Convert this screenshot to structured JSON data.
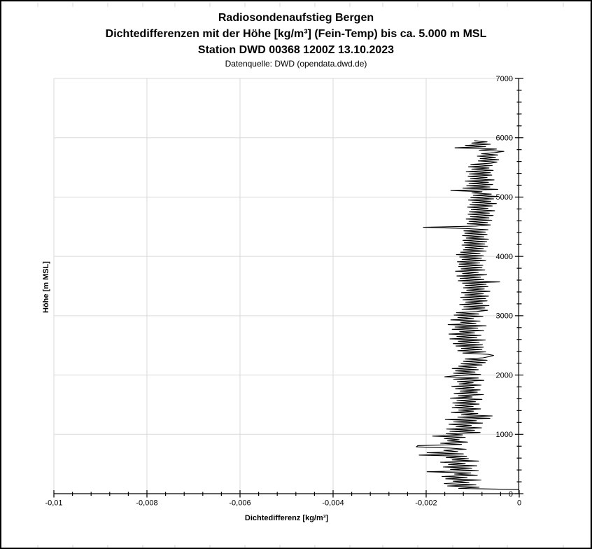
{
  "header": {
    "title": "Radiosondenaufstieg Bergen",
    "subtitle": "Dichtedifferenzen mit der Höhe [kg/m³] (Fein-Temp) bis ca. 5.000 m MSL",
    "station_line": "Station DWD 00368 1200Z 13.10.2023",
    "source_line": "Datenquelle: DWD (opendata.dwd.de)"
  },
  "colors": {
    "background": "#ffffff",
    "border": "#000000",
    "grid": "#d9d9d9",
    "axis": "#000000",
    "line": "#000000",
    "text": "#000000",
    "cell_artifact": "#d9d9d9"
  },
  "chart_data": {
    "type": "line",
    "title": "Radiosondenaufstieg Bergen",
    "subtitle": "Dichtedifferenzen mit der Höhe [kg/m³] (Fein-Temp) bis ca. 5.000 m MSL",
    "xlabel": "Dichtedifferenz [kg/m³]",
    "ylabel": "Höhe [m MSL]",
    "xlim": [
      -0.01,
      0
    ],
    "ylim": [
      0,
      7000
    ],
    "x_major_tick": 0.002,
    "x_minor_tick": 0.0004,
    "y_major_tick": 1000,
    "y_minor_tick": 200,
    "x_tick_labels": [
      "-0,01",
      "-0,008",
      "-0,006",
      "-0,004",
      "-0,002",
      "0"
    ],
    "x_tick_values": [
      -0.01,
      -0.008,
      -0.006,
      -0.004,
      -0.002,
      0
    ],
    "y_tick_labels": [
      "7000",
      "6000",
      "5000",
      "4000",
      "3000",
      "2000",
      "1000",
      "0"
    ],
    "y_tick_values": [
      7000,
      6000,
      5000,
      4000,
      3000,
      2000,
      1000,
      0
    ],
    "grid": true,
    "legend": false,
    "series": [
      {
        "name": "Dichtedifferenz (Fein-Temp)",
        "orientation": "value_x_vs_height_y",
        "value_unit": "kg/m³",
        "value_scale": 0.0001,
        "height_start_m": 70,
        "height_step_m": 20,
        "values": [
          -0.2,
          -13.0,
          -8.6,
          -15.4,
          -9.3,
          -16.1,
          -10.8,
          -14.2,
          -8.2,
          -15.8,
          -11.2,
          -16.6,
          -9.0,
          -13.9,
          -10.4,
          -19.8,
          -8.8,
          -14.8,
          -10.2,
          -16.3,
          -9.1,
          -15.2,
          -11.6,
          -16.9,
          -8.7,
          -14.4,
          -10.9,
          -15.7,
          -11.3,
          -21.5,
          -12.0,
          -19.8,
          -13.2,
          -16.2,
          -11.4,
          -15.0,
          -22.1,
          -21.8,
          -12.4,
          -16.9,
          -11.1,
          -15.4,
          -12.9,
          -16.1,
          -11.6,
          -18.6,
          -12.2,
          -15.7,
          -8.4,
          -14.9,
          -9.6,
          -15.6,
          -8.1,
          -13.6,
          -10.3,
          -15.1,
          -7.9,
          -14.1,
          -9.2,
          -15.9,
          -6.3,
          -13.2,
          -5.8,
          -12.4,
          -8.9,
          -14.6,
          -9.8,
          -13.0,
          -8.3,
          -14.4,
          -9.9,
          -13.8,
          -8.6,
          -14.3,
          -9.4,
          -13.4,
          -8.0,
          -14.8,
          -10.1,
          -13.1,
          -7.7,
          -14.0,
          -9.0,
          -12.7,
          -8.4,
          -13.7,
          -9.7,
          -14.5,
          -8.2,
          -12.9,
          -9.9,
          -13.3,
          -7.6,
          -14.1,
          -8.8,
          -16.0,
          -13.4,
          -8.3,
          -14.1,
          -9.5,
          -13.7,
          -8.8,
          -14.4,
          -9.2,
          -13.0,
          -8.0,
          -12.5,
          -7.3,
          -12.0,
          -6.9,
          -11.6,
          -7.8,
          -6.5,
          -5.5,
          -6.8,
          -12.1,
          -7.2,
          -13.2,
          -8.0,
          -12.4,
          -7.7,
          -13.6,
          -7.9,
          -14.2,
          -8.6,
          -13.1,
          -7.3,
          -14.9,
          -9.1,
          -13.4,
          -8.2,
          -15.1,
          -9.6,
          -12.8,
          -7.6,
          -14.4,
          -8.9,
          -13.8,
          -7.1,
          -15.3,
          -9.3,
          -12.6,
          -8.4,
          -14.7,
          -9.8,
          -13.2,
          -7.8,
          -14.0,
          -8.7,
          -13.5,
          -9.2,
          -6.8,
          -12.3,
          -7.4,
          -11.9,
          -6.5,
          -12.8,
          -7.9,
          -11.5,
          -6.9,
          -12.1,
          -7.2,
          -12.6,
          -6.6,
          -11.7,
          -7.7,
          -12.4,
          -6.3,
          -11.3,
          -7.5,
          -12.0,
          -6.7,
          -11.6,
          -7.1,
          -12.2,
          -4.2,
          -13.1,
          -7.6,
          -12.7,
          -8.3,
          -13.4,
          -7.0,
          -12.2,
          -8.8,
          -13.7,
          -7.4,
          -12.5,
          -8.0,
          -13.0,
          -7.8,
          -12.9,
          -8.5,
          -13.3,
          -7.2,
          -12.3,
          -8.1,
          -12.8,
          -7.7,
          -13.5,
          -8.4,
          -12.6,
          -7.1,
          -12.0,
          -7.7,
          -11.6,
          -6.8,
          -12.3,
          -7.4,
          -11.8,
          -7.0,
          -12.1,
          -6.6,
          -11.4,
          -7.6,
          -12.2,
          -6.9,
          -11.7,
          -7.3,
          -11.9,
          -6.7,
          -11.5,
          -20.6,
          -9.4,
          -6.2,
          -11.2,
          -6.8,
          -10.8,
          -5.9,
          -11.4,
          -6.5,
          -10.5,
          -5.6,
          -11.0,
          -6.4,
          -10.7,
          -5.3,
          -10.3,
          -6.7,
          -11.1,
          -5.8,
          -10.6,
          -4.9,
          -10.1,
          -6.1,
          -10.9,
          -5.5,
          -10.4,
          -4.6,
          -9.9,
          -6.0,
          -10.2,
          -8.0,
          -14.7,
          -4.6,
          -12.1,
          -6.3,
          -11.3,
          -5.7,
          -10.8,
          -6.6,
          -11.6,
          -5.4,
          -10.5,
          -6.9,
          -11.0,
          -5.9,
          -10.7,
          -6.2,
          -11.4,
          -5.6,
          -10.2,
          -6.5,
          -10.9,
          -5.8,
          -10.4,
          -6.1,
          -4.8,
          -8.8,
          -4.4,
          -8.4,
          -5.1,
          -9.0,
          -4.6,
          -8.1,
          -5.3,
          -3.3,
          -8.6,
          -4.9,
          -13.8,
          -7.2,
          -11.6,
          -6.2,
          -10.2,
          -6.9,
          -9.6
        ]
      }
    ]
  }
}
